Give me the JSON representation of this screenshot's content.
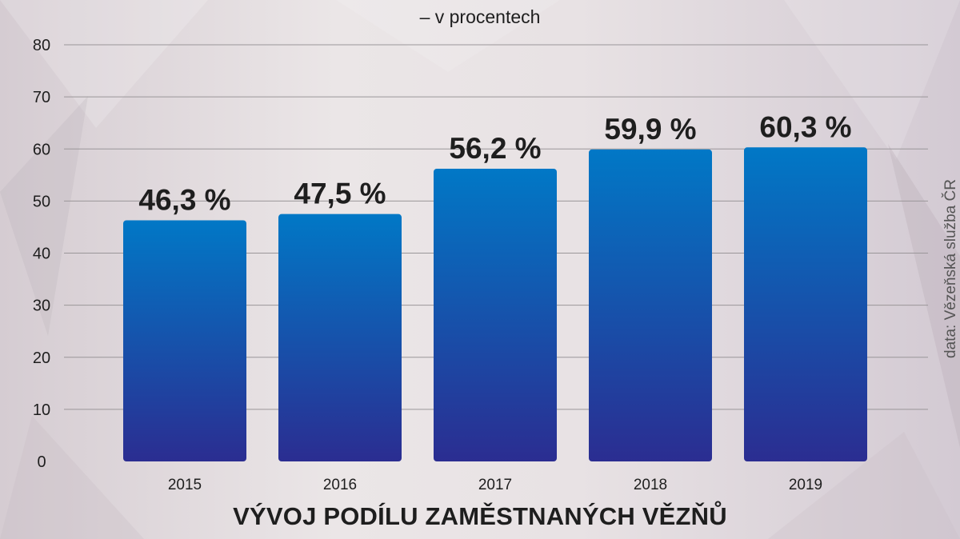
{
  "colors": {
    "bar_top": "#0178c6",
    "bar_bottom": "#2b2d91",
    "gridline": "#9a9699",
    "text": "#1e1e1e",
    "source_text": "#555555"
  },
  "header": {
    "subtitle": "– v procentech"
  },
  "footer": {
    "title": "VÝVOJ PODÍLU ZAMĚSTNANÝCH VĚZŇŮ"
  },
  "source": {
    "label": "data: Vězeňská služba ČR"
  },
  "chart_data": {
    "type": "bar",
    "title": "VÝVOJ PODÍLU ZAMĚSTNANÝCH VĚZŇŮ",
    "subtitle": "– v procentech",
    "categories": [
      "2015",
      "2016",
      "2017",
      "2018",
      "2019"
    ],
    "values": [
      46.3,
      47.5,
      56.2,
      59.9,
      60.3
    ],
    "data_labels": [
      "46,3 %",
      "47,5 %",
      "56,2 %",
      "59,9 %",
      "60,3 %"
    ],
    "ylim": [
      0,
      80
    ],
    "yticks": [
      0,
      10,
      20,
      30,
      40,
      50,
      60,
      70,
      80
    ],
    "grid": true,
    "legend": "none",
    "source": "data: Vězeňská služba ČR"
  }
}
